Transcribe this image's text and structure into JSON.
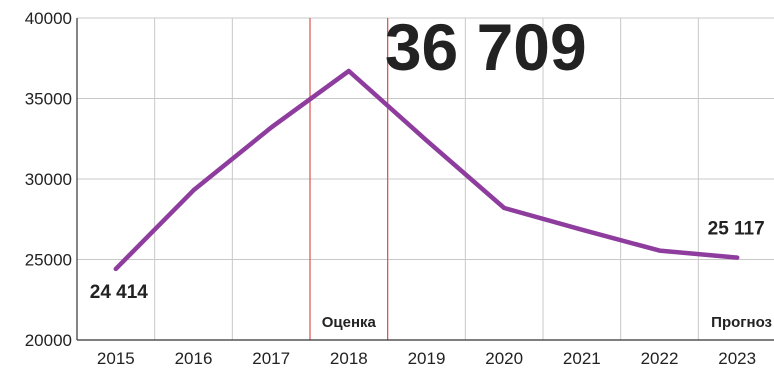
{
  "chart_data": {
    "type": "line",
    "x": [
      "2015",
      "2016",
      "2017",
      "2018",
      "2019",
      "2020",
      "2021",
      "2022",
      "2023"
    ],
    "series": [
      {
        "values": [
          24414,
          29300,
          33200,
          36709,
          32400,
          28200,
          26850,
          25550,
          25117
        ]
      }
    ],
    "ylim": [
      20000,
      40000
    ],
    "yticks": [
      "20000",
      "25000",
      "30000",
      "35000",
      "40000"
    ],
    "grid": true,
    "estimate_band": {
      "from": "2017.5",
      "to": "2018.5",
      "label": "Оценка"
    },
    "forecast_label": "Прогноз",
    "annotations": {
      "start": "24 414",
      "peak": "36 709",
      "end": "25 117"
    },
    "colors": {
      "line": "#8e3d9e",
      "band": "#d9534f",
      "grid": "#c8c8c8",
      "axis": "#333333",
      "text": "#222222"
    }
  }
}
